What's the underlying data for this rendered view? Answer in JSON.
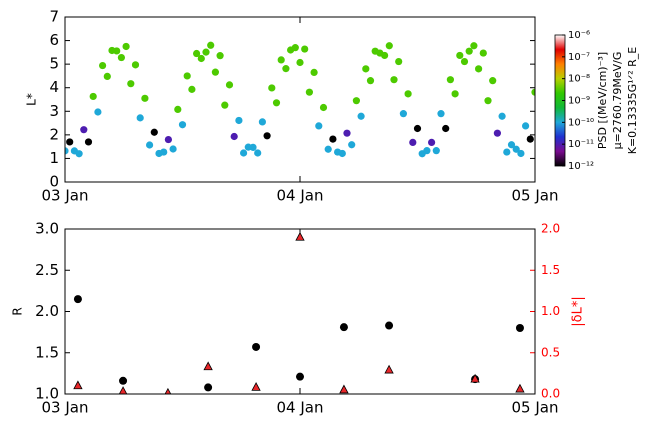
{
  "chart_data": [
    {
      "type": "scatter",
      "ylabel": "L*",
      "xlim": [
        0,
        2
      ],
      "xticks": [
        {
          "value": 0,
          "label": "03 Jan"
        },
        {
          "value": 1,
          "label": "04 Jan"
        },
        {
          "value": 2,
          "label": "05 Jan"
        }
      ],
      "ylim": [
        0,
        7
      ],
      "yticks": [
        0,
        1,
        2,
        3,
        4,
        5,
        6,
        7
      ],
      "series": [
        {
          "x": [
            0,
            0.04,
            0.08,
            0.12,
            0.16,
            0.2,
            0.24,
            0.28,
            0.32,
            0.36,
            0.4,
            0.44,
            0.48,
            0.52,
            0.56,
            0.6,
            0.64,
            0.68,
            0.72,
            0.76,
            0.8,
            0.84,
            0.88,
            0.92,
            0.96,
            1,
            1.04,
            1.08,
            1.12,
            1.16,
            1.2,
            1.24,
            1.28,
            1.32,
            1.36,
            1.4,
            1.44,
            1.48,
            1.52,
            1.56,
            1.6,
            1.64,
            1.68,
            1.72,
            1.76,
            1.8,
            1.84,
            1.88,
            1.92,
            1.96,
            2
          ],
          "values": [
            1.32,
            1.32,
            2.22,
            3.63,
            4.94,
            5.58,
            5.28,
            4.17,
            2.72,
            1.57,
            1.21,
            1.8,
            3.08,
            4.5,
            5.45,
            5.51,
            4.66,
            3.26,
            1.93,
            1.23,
            1.47,
            2.55,
            3.99,
            5.18,
            5.6,
            5.07,
            3.81,
            2.38,
            1.39,
            1.27,
            2.07,
            3.45,
            4.8,
            5.55,
            5.37,
            4.34,
            2.9,
            1.68,
            1.2,
            1.68,
            2.9,
            4.34,
            5.37,
            5.55,
            4.8,
            3.45,
            2.07,
            1.27,
            1.39,
            2.38,
            3.81
          ],
          "psd": [
            1e-10,
            1e-10,
            1e-11,
            3e-09,
            3e-09,
            3e-09,
            3e-09,
            3e-09,
            1e-10,
            1e-10,
            1e-10,
            1e-11,
            3e-09,
            3e-09,
            3e-09,
            3e-09,
            3e-09,
            3e-09,
            1e-11,
            1e-10,
            1e-10,
            1e-10,
            3e-09,
            3e-09,
            3e-09,
            3e-09,
            3e-09,
            1e-10,
            1e-10,
            1e-10,
            1e-11,
            3e-09,
            3e-09,
            3e-09,
            3e-09,
            3e-09,
            1e-10,
            1e-11,
            1e-10,
            1e-11,
            1e-10,
            3e-09,
            3e-09,
            3e-09,
            3e-09,
            3e-09,
            1e-11,
            1e-10,
            1e-10,
            1e-10,
            3e-09
          ]
        },
        {
          "x": [
            0.02,
            0.06,
            0.1,
            0.14,
            0.18,
            0.22,
            0.26,
            0.3,
            0.34,
            0.38,
            0.42,
            0.46,
            0.5,
            0.54,
            0.58,
            0.62,
            0.66,
            0.7,
            0.74,
            0.78,
            0.82,
            0.86,
            0.9,
            0.94,
            0.98,
            1.02,
            1.06,
            1.1,
            1.14,
            1.18,
            1.22,
            1.26,
            1.3,
            1.34,
            1.38,
            1.42,
            1.46,
            1.5,
            1.54,
            1.58,
            1.62,
            1.66,
            1.7,
            1.74,
            1.78,
            1.82,
            1.86,
            1.9,
            1.94,
            1.98
          ],
          "values": [
            1.7,
            1.2,
            1.7,
            2.97,
            4.48,
            5.56,
            5.75,
            4.97,
            3.55,
            2.11,
            1.27,
            1.4,
            2.43,
            3.93,
            5.24,
            5.8,
            5.36,
            4.12,
            2.61,
            1.48,
            1.23,
            1.96,
            3.36,
            4.81,
            5.7,
            5.64,
            4.65,
            3.16,
            1.82,
            1.21,
            1.58,
            2.79,
            4.3,
            5.47,
            5.78,
            5.11,
            3.74,
            2.27,
            1.33,
            1.33,
            2.27,
            3.74,
            5.11,
            5.78,
            5.47,
            4.3,
            2.79,
            1.58,
            1.21,
            1.82
          ],
          "psd": [
            1e-12,
            1e-10,
            1e-12,
            1e-10,
            3e-09,
            3e-09,
            3e-09,
            3e-09,
            3e-09,
            1e-12,
            1e-10,
            1e-10,
            1e-10,
            3e-09,
            3e-09,
            3e-09,
            3e-09,
            3e-09,
            1e-10,
            1e-10,
            1e-10,
            1e-12,
            3e-09,
            3e-09,
            3e-09,
            3e-09,
            3e-09,
            3e-09,
            1e-12,
            1e-10,
            1e-10,
            1e-10,
            3e-09,
            3e-09,
            3e-09,
            3e-09,
            3e-09,
            1e-12,
            1e-10,
            1e-10,
            1e-12,
            3e-09,
            3e-09,
            3e-09,
            3e-09,
            3e-09,
            1e-10,
            1e-10,
            1e-10,
            1e-12
          ]
        }
      ],
      "colorbar": {
        "lim": [
          1e-12,
          1e-06
        ],
        "log": true,
        "colors": [
          "#000000",
          "#7a0a8f",
          "#2030d0",
          "#1fa8d8",
          "#10b838",
          "#30c800",
          "#b8d000",
          "#ff8000",
          "#e00000",
          "#ffffff"
        ],
        "ticks": [
          {
            "value": 1e-12,
            "label": "10⁻¹²"
          },
          {
            "value": 1e-11,
            "label": "10⁻¹¹"
          },
          {
            "value": 1e-10,
            "label": "10⁻¹⁰"
          },
          {
            "value": 1e-09,
            "label": "10⁻⁹"
          },
          {
            "value": 1e-08,
            "label": "10⁻⁸"
          },
          {
            "value": 1e-07,
            "label": "10⁻⁷"
          },
          {
            "value": 1e-06,
            "label": "10⁻⁶"
          }
        ],
        "labels": [
          "PSD [(MeV/cm)⁻³]",
          "μ=2760.79MeV/G",
          "K=0.13335G¹ᐟ² R_E"
        ]
      }
    },
    {
      "type": "scatter",
      "ylabel": "R",
      "y2label": "|δL*|",
      "y2color": "#ff0000",
      "xlim": [
        0,
        2
      ],
      "xticks": [
        {
          "value": 0,
          "label": "03 Jan"
        },
        {
          "value": 1,
          "label": "04 Jan"
        },
        {
          "value": 2,
          "label": "05 Jan"
        }
      ],
      "ylim": [
        1,
        3
      ],
      "yticks": [
        {
          "value": 1,
          "label": "1.0"
        },
        1.5,
        {
          "value": 2,
          "label": "2.0"
        },
        2.5,
        {
          "value": 3,
          "label": "3.0"
        }
      ],
      "y2lim": [
        0,
        2
      ],
      "y2ticks": [
        {
          "value": 0,
          "label": "0.0"
        },
        0.5,
        {
          "value": 1,
          "label": "1.0"
        },
        1.5,
        {
          "value": 2,
          "label": "2.0"
        }
      ],
      "series": [
        {
          "marker": "circle",
          "color": "#000000",
          "x": [
            0.055,
            0.247,
            0.609,
            0.813,
            1.0,
            1.187,
            1.379,
            1.745,
            1.936
          ],
          "values": [
            2.15,
            1.16,
            1.08,
            1.57,
            1.21,
            1.81,
            1.83,
            1.18,
            1.8
          ]
        },
        {
          "marker": "triangle",
          "color": "#e8262a",
          "axis": "y2",
          "x": [
            0.055,
            0.247,
            0.438,
            0.609,
            0.813,
            1.0,
            1.187,
            1.379,
            1.745,
            1.936
          ],
          "values": [
            0.1,
            0.03,
            0.01,
            0.33,
            0.08,
            1.9,
            0.05,
            0.29,
            0.18,
            0.06
          ]
        }
      ]
    }
  ]
}
